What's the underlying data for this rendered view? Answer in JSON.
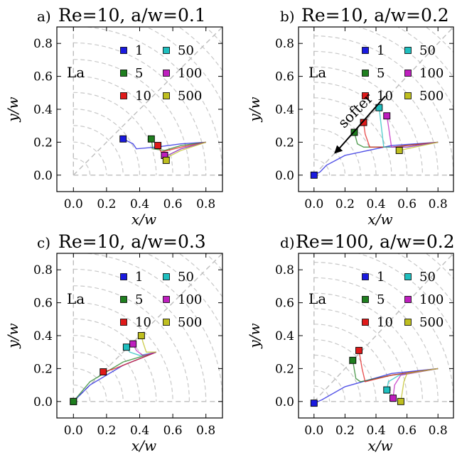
{
  "chart_data": [
    {
      "type": "line",
      "panel_label": "a)",
      "title": "Re=10, a/w=0.1",
      "xlabel": "x/w",
      "ylabel": "y/w",
      "xlim": [
        -0.1,
        0.9
      ],
      "ylim": [
        -0.1,
        0.9
      ],
      "xticks": [
        "0.0",
        "0.2",
        "0.4",
        "0.6",
        "0.8"
      ],
      "yticks": [
        "0.0",
        "0.2",
        "0.4",
        "0.6",
        "0.8"
      ],
      "legend_title": "La",
      "legend": [
        "1",
        "5",
        "10",
        "50",
        "100",
        "500"
      ],
      "series": [
        {
          "name": "1",
          "color": "#1a1adf",
          "x": [
            0.8,
            0.65,
            0.5,
            0.38,
            0.36,
            0.3
          ],
          "y": [
            0.2,
            0.19,
            0.17,
            0.16,
            0.19,
            0.22
          ]
        },
        {
          "name": "5",
          "color": "#1f7f1f",
          "x": [
            0.8,
            0.65,
            0.55,
            0.48,
            0.47
          ],
          "y": [
            0.2,
            0.18,
            0.15,
            0.16,
            0.22
          ]
        },
        {
          "name": "10",
          "color": "#e01a1a",
          "x": [
            0.8,
            0.65,
            0.53,
            0.51
          ],
          "y": [
            0.2,
            0.17,
            0.14,
            0.18
          ]
        },
        {
          "name": "50",
          "color": "#1fbfbf",
          "x": [
            0.8,
            0.65,
            0.57,
            0.55
          ],
          "y": [
            0.2,
            0.16,
            0.12,
            0.12
          ]
        },
        {
          "name": "100",
          "color": "#bf1fbf",
          "x": [
            0.8,
            0.65,
            0.57,
            0.55
          ],
          "y": [
            0.2,
            0.16,
            0.12,
            0.12
          ]
        },
        {
          "name": "500",
          "color": "#bfbf1f",
          "x": [
            0.8,
            0.65,
            0.57,
            0.56
          ],
          "y": [
            0.2,
            0.15,
            0.11,
            0.09
          ]
        }
      ]
    },
    {
      "type": "line",
      "panel_label": "b)",
      "title": "Re=10, a/w=0.2",
      "xlabel": "x/w",
      "ylabel": "y/w",
      "xlim": [
        -0.1,
        0.9
      ],
      "ylim": [
        -0.1,
        0.9
      ],
      "xticks": [
        "0.0",
        "0.2",
        "0.4",
        "0.6",
        "0.8"
      ],
      "yticks": [
        "0.0",
        "0.2",
        "0.4",
        "0.6",
        "0.8"
      ],
      "legend_title": "La",
      "legend": [
        "1",
        "5",
        "10",
        "50",
        "100",
        "500"
      ],
      "annotation": "softer",
      "series": [
        {
          "name": "1",
          "color": "#1a1adf",
          "x": [
            0.8,
            0.5,
            0.2,
            0.08,
            0.04,
            0.0
          ],
          "y": [
            0.2,
            0.18,
            0.12,
            0.06,
            0.02,
            0.0
          ]
        },
        {
          "name": "5",
          "color": "#1f7f1f",
          "x": [
            0.8,
            0.5,
            0.32,
            0.28,
            0.26
          ],
          "y": [
            0.2,
            0.17,
            0.17,
            0.19,
            0.26
          ]
        },
        {
          "name": "10",
          "color": "#e01a1a",
          "x": [
            0.8,
            0.5,
            0.36,
            0.33,
            0.32
          ],
          "y": [
            0.2,
            0.17,
            0.17,
            0.25,
            0.32
          ]
        },
        {
          "name": "50",
          "color": "#1fbfbf",
          "x": [
            0.8,
            0.6,
            0.45,
            0.43,
            0.42
          ],
          "y": [
            0.2,
            0.17,
            0.17,
            0.33,
            0.41
          ]
        },
        {
          "name": "100",
          "color": "#bf1fbf",
          "x": [
            0.8,
            0.6,
            0.5,
            0.48,
            0.47
          ],
          "y": [
            0.2,
            0.17,
            0.17,
            0.3,
            0.36
          ]
        },
        {
          "name": "500",
          "color": "#bfbf1f",
          "x": [
            0.8,
            0.65,
            0.55
          ],
          "y": [
            0.2,
            0.17,
            0.15
          ]
        }
      ]
    },
    {
      "type": "line",
      "panel_label": "c)",
      "title": "Re=10, a/w=0.3",
      "xlabel": "x/w",
      "ylabel": "y/w",
      "xlim": [
        -0.1,
        0.9
      ],
      "ylim": [
        -0.1,
        0.9
      ],
      "xticks": [
        "0.0",
        "0.2",
        "0.4",
        "0.6",
        "0.8"
      ],
      "yticks": [
        "0.0",
        "0.2",
        "0.4",
        "0.6",
        "0.8"
      ],
      "legend_title": "La",
      "legend": [
        "1",
        "5",
        "10",
        "50",
        "100",
        "500"
      ],
      "series": [
        {
          "name": "1",
          "color": "#1a1adf",
          "x": [
            0.5,
            0.3,
            0.1,
            0.0
          ],
          "y": [
            0.3,
            0.22,
            0.1,
            0.0
          ]
        },
        {
          "name": "5",
          "color": "#1f7f1f",
          "x": [
            0.5,
            0.3,
            0.1,
            0.0
          ],
          "y": [
            0.3,
            0.24,
            0.12,
            0.0
          ]
        },
        {
          "name": "10",
          "color": "#e01a1a",
          "x": [
            0.5,
            0.35,
            0.25,
            0.18
          ],
          "y": [
            0.3,
            0.24,
            0.2,
            0.18
          ]
        },
        {
          "name": "50",
          "color": "#1fbfbf",
          "x": [
            0.5,
            0.4,
            0.34,
            0.32
          ],
          "y": [
            0.3,
            0.28,
            0.3,
            0.33
          ]
        },
        {
          "name": "100",
          "color": "#bf1fbf",
          "x": [
            0.5,
            0.42,
            0.38,
            0.36
          ],
          "y": [
            0.3,
            0.28,
            0.31,
            0.35
          ]
        },
        {
          "name": "500",
          "color": "#bfbf1f",
          "x": [
            0.5,
            0.44,
            0.42,
            0.41
          ],
          "y": [
            0.3,
            0.3,
            0.36,
            0.4
          ]
        }
      ]
    },
    {
      "type": "line",
      "panel_label": "d)",
      "title": "Re=100, a/w=0.2",
      "xlabel": "x/w",
      "ylabel": "y/w",
      "xlim": [
        -0.1,
        0.9
      ],
      "ylim": [
        -0.1,
        0.9
      ],
      "xticks": [
        "0.0",
        "0.2",
        "0.4",
        "0.6",
        "0.8"
      ],
      "yticks": [
        "0.0",
        "0.2",
        "0.4",
        "0.6",
        "0.8"
      ],
      "legend_title": "La",
      "legend": [
        "1",
        "5",
        "10",
        "50",
        "100",
        "500"
      ],
      "series": [
        {
          "name": "1",
          "color": "#1a1adf",
          "x": [
            0.8,
            0.5,
            0.2,
            0.05,
            0.0
          ],
          "y": [
            0.2,
            0.17,
            0.09,
            0.01,
            -0.01
          ]
        },
        {
          "name": "5",
          "color": "#1f7f1f",
          "x": [
            0.8,
            0.5,
            0.3,
            0.27,
            0.25
          ],
          "y": [
            0.2,
            0.16,
            0.12,
            0.14,
            0.25
          ]
        },
        {
          "name": "10",
          "color": "#e01a1a",
          "x": [
            0.8,
            0.5,
            0.33,
            0.31,
            0.29
          ],
          "y": [
            0.2,
            0.16,
            0.12,
            0.2,
            0.31
          ]
        },
        {
          "name": "50",
          "color": "#1fbfbf",
          "x": [
            0.8,
            0.55,
            0.48,
            0.47
          ],
          "y": [
            0.2,
            0.16,
            0.12,
            0.07
          ]
        },
        {
          "name": "100",
          "color": "#bf1fbf",
          "x": [
            0.8,
            0.56,
            0.52,
            0.51
          ],
          "y": [
            0.2,
            0.16,
            0.1,
            0.02
          ]
        },
        {
          "name": "500",
          "color": "#bfbf1f",
          "x": [
            0.8,
            0.6,
            0.58,
            0.56
          ],
          "y": [
            0.2,
            0.17,
            0.12,
            0.0
          ]
        }
      ]
    }
  ]
}
